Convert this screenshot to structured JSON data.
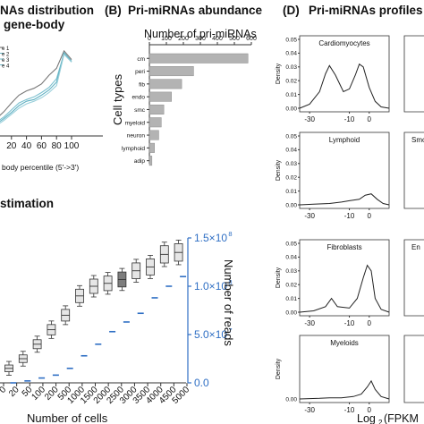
{
  "panels": {
    "A": {
      "title_line1": "NAs distribution",
      "title_line2": "gene-body",
      "legend": [
        "e 1",
        "e 2",
        "e 3",
        "e 4"
      ],
      "xticks": [
        "0",
        "20",
        "40",
        "60",
        "80",
        "100"
      ],
      "xlabel": "body percentile (5'->3')"
    },
    "B_title": "Pri-miRNAs abundance",
    "B_letter": "(B)",
    "C_title": "stimation",
    "D_title": "Pri-miRNAs profiles",
    "D_letter": "(D)"
  },
  "colors": {
    "bars": "#b3b3b3",
    "reads": "#2f6fc4",
    "box": "#e6e6e6",
    "box_dark": "#7d7d7d"
  },
  "chart_data": [
    {
      "type": "line",
      "title": "",
      "xlabel": "body percentile (5'->3')",
      "ylabel": "",
      "x": [
        0,
        10,
        20,
        30,
        40,
        50,
        60,
        70,
        80,
        90,
        100
      ],
      "series": [
        {
          "name": "e 1",
          "values": [
            0.2,
            0.28,
            0.38,
            0.47,
            0.52,
            0.55,
            0.6,
            0.7,
            0.78,
            0.98,
            0.88
          ]
        },
        {
          "name": "e 2",
          "values": [
            0.16,
            0.22,
            0.3,
            0.38,
            0.42,
            0.45,
            0.5,
            0.56,
            0.66,
            0.95,
            0.86
          ]
        },
        {
          "name": "e 3",
          "values": [
            0.14,
            0.2,
            0.27,
            0.35,
            0.4,
            0.42,
            0.47,
            0.53,
            0.62,
            0.96,
            0.86
          ]
        },
        {
          "name": "e 4",
          "values": [
            0.12,
            0.18,
            0.25,
            0.32,
            0.37,
            0.4,
            0.44,
            0.5,
            0.58,
            0.94,
            0.85
          ]
        }
      ],
      "xlim": [
        0,
        100
      ]
    },
    {
      "type": "bar",
      "title": "Number of pri-miRNAs",
      "ylabel": "Cell types",
      "categories": [
        "cm",
        "peri",
        "fib",
        "endo",
        "smc",
        "myeloid",
        "neuron",
        "lymphoid",
        "adip"
      ],
      "values": [
        580,
        260,
        190,
        130,
        85,
        70,
        55,
        30,
        15
      ],
      "xticks": [
        "0",
        "100",
        "200",
        "300",
        "400",
        "500",
        "600"
      ],
      "xlim": [
        0,
        600
      ]
    },
    {
      "type": "scatter",
      "title": "",
      "xlabel": "Number of cells",
      "ylabel": "Number of reads",
      "categories": [
        "0",
        "100",
        "200",
        "500",
        "1000",
        "1500",
        "2000",
        "2500",
        "3000",
        "3500",
        "4000",
        "4500",
        "5000"
      ],
      "tick_labels": [
        "0",
        "20",
        "50",
        "100",
        "200",
        "500",
        "1000",
        "1500",
        "2000",
        "2500",
        "3000",
        "3500",
        "4000",
        "4500",
        "5000"
      ],
      "box_values": [
        0.15,
        0.25,
        0.4,
        0.55,
        0.7,
        0.9,
        1.0,
        1.03,
        1.07,
        1.16,
        1.2,
        1.33,
        1.35
      ],
      "reads_values": [
        0.0,
        0.02,
        0.05,
        0.08,
        0.15,
        0.28,
        0.4,
        0.53,
        0.63,
        0.72,
        0.88,
        1.0,
        1.1
      ],
      "right_ticks": [
        "0.0",
        "5.0×10",
        "1.0×10",
        "1.5×10"
      ],
      "right_tick_exp": [
        "",
        "7",
        "8",
        "8"
      ],
      "ylim_reads": [
        0,
        150000000
      ]
    },
    {
      "type": "line",
      "title": "Pri-miRNAs profiles",
      "xlabel": "Log",
      "xlabel_sub": "2",
      "xlabel_rest": "(FPKM",
      "ylabel": "Density",
      "subplots": [
        {
          "name": "Cardiomyocytes",
          "yticks": [
            "0.05",
            "0.04",
            "0.03",
            "0.02",
            "0.01",
            "0.00"
          ],
          "xticks": [
            "-30",
            "-10",
            "0"
          ],
          "x": [
            -35,
            -30,
            -25,
            -22,
            -20,
            -17,
            -13,
            -10,
            -7,
            -5,
            -3,
            0,
            3,
            6,
            10
          ],
          "y": [
            0,
            0.003,
            0.012,
            0.025,
            0.031,
            0.024,
            0.012,
            0.014,
            0.024,
            0.032,
            0.03,
            0.015,
            0.005,
            0.001,
            0
          ]
        },
        {
          "name": "Lymphoid",
          "yticks": [
            "0.05",
            "0.04",
            "0.03",
            "0.02",
            "0.01",
            "0.00"
          ],
          "xticks": [
            "-30",
            "-10",
            "0"
          ],
          "x": [
            -35,
            -28,
            -20,
            -14,
            -10,
            -5,
            -2,
            1,
            4,
            7,
            10
          ],
          "y": [
            0,
            0.0005,
            0.001,
            0.002,
            0.003,
            0.004,
            0.007,
            0.008,
            0.004,
            0.001,
            0
          ]
        },
        {
          "name": "Fibroblasts",
          "yticks": [
            "0.05",
            "0.04",
            "0.03",
            "0.02",
            "0.01",
            "0.00"
          ],
          "xticks": [
            "-30",
            "-10",
            "0"
          ],
          "x": [
            -35,
            -28,
            -22,
            -19,
            -16,
            -10,
            -6,
            -3,
            -1,
            1,
            3,
            6,
            10
          ],
          "y": [
            0,
            0.001,
            0.004,
            0.01,
            0.004,
            0.003,
            0.01,
            0.025,
            0.034,
            0.03,
            0.01,
            0.002,
            0
          ]
        },
        {
          "name": "Myeloids",
          "yticks": [
            "0.05",
            "0.04",
            "0.03",
            "0.02",
            "0.01",
            "0.00"
          ],
          "xticks": [
            "-30",
            "-10",
            "0"
          ],
          "x": [
            -35,
            -25,
            -20,
            -14,
            -8,
            -4,
            -1,
            1,
            3,
            6,
            10
          ],
          "y": [
            0,
            0.0005,
            0.001,
            0.001,
            0.002,
            0.004,
            0.01,
            0.015,
            0.008,
            0.002,
            0
          ]
        }
      ],
      "partial_titles": [
        "Smo",
        "En"
      ]
    }
  ]
}
